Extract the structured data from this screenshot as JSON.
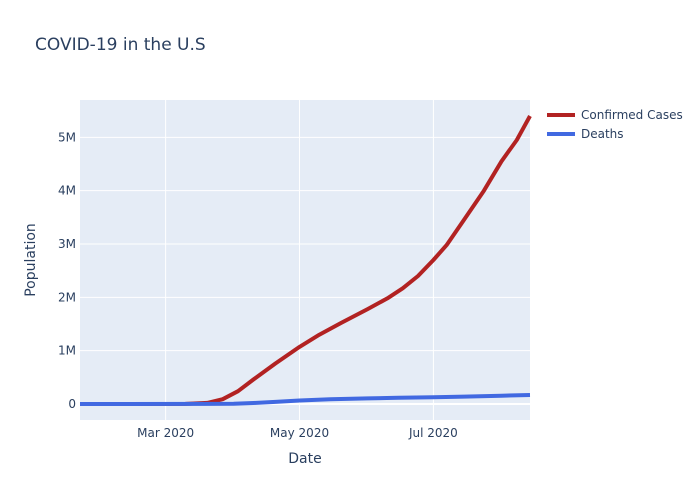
{
  "chart_data": {
    "type": "line",
    "title": "COVID-19 in the U.S",
    "xlabel": "Date",
    "ylabel": "Population",
    "x_type": "date",
    "xlim": [
      "2020-01-22",
      "2020-08-14"
    ],
    "ylim": [
      -300000,
      5700000
    ],
    "x_ticks": [
      {
        "date": "2020-03-01",
        "label": "Mar 2020"
      },
      {
        "date": "2020-05-01",
        "label": "May 2020"
      },
      {
        "date": "2020-07-01",
        "label": "Jul 2020"
      }
    ],
    "y_ticks": [
      {
        "value": 0,
        "label": "0"
      },
      {
        "value": 1000000,
        "label": "1M"
      },
      {
        "value": 2000000,
        "label": "2M"
      },
      {
        "value": 3000000,
        "label": "3M"
      },
      {
        "value": 4000000,
        "label": "4M"
      },
      {
        "value": 5000000,
        "label": "5M"
      }
    ],
    "grid": true,
    "legend_position": "top-right",
    "plot_background": "#e5ecf6",
    "series": [
      {
        "name": "Confirmed Cases",
        "color": "#b22222",
        "points": [
          {
            "x": "2020-01-22",
            "y": 0
          },
          {
            "x": "2020-02-15",
            "y": 15
          },
          {
            "x": "2020-03-10",
            "y": 1000
          },
          {
            "x": "2020-03-20",
            "y": 20000
          },
          {
            "x": "2020-03-27",
            "y": 90000
          },
          {
            "x": "2020-04-03",
            "y": 240000
          },
          {
            "x": "2020-04-10",
            "y": 460000
          },
          {
            "x": "2020-04-20",
            "y": 760000
          },
          {
            "x": "2020-05-01",
            "y": 1070000
          },
          {
            "x": "2020-05-10",
            "y": 1300000
          },
          {
            "x": "2020-05-20",
            "y": 1520000
          },
          {
            "x": "2020-06-01",
            "y": 1780000
          },
          {
            "x": "2020-06-10",
            "y": 1980000
          },
          {
            "x": "2020-06-17",
            "y": 2170000
          },
          {
            "x": "2020-06-24",
            "y": 2400000
          },
          {
            "x": "2020-07-01",
            "y": 2700000
          },
          {
            "x": "2020-07-07",
            "y": 2980000
          },
          {
            "x": "2020-07-14",
            "y": 3400000
          },
          {
            "x": "2020-07-24",
            "y": 4000000
          },
          {
            "x": "2020-08-01",
            "y": 4550000
          },
          {
            "x": "2020-08-08",
            "y": 4950000
          },
          {
            "x": "2020-08-14",
            "y": 5400000
          }
        ]
      },
      {
        "name": "Deaths",
        "color": "#4169e1",
        "points": [
          {
            "x": "2020-01-22",
            "y": 0
          },
          {
            "x": "2020-03-20",
            "y": 1000
          },
          {
            "x": "2020-04-01",
            "y": 6000
          },
          {
            "x": "2020-04-10",
            "y": 18000
          },
          {
            "x": "2020-04-20",
            "y": 40000
          },
          {
            "x": "2020-05-01",
            "y": 65000
          },
          {
            "x": "2020-05-15",
            "y": 88000
          },
          {
            "x": "2020-06-01",
            "y": 105000
          },
          {
            "x": "2020-06-15",
            "y": 117000
          },
          {
            "x": "2020-07-01",
            "y": 128000
          },
          {
            "x": "2020-07-15",
            "y": 138000
          },
          {
            "x": "2020-08-01",
            "y": 155000
          },
          {
            "x": "2020-08-14",
            "y": 168000
          }
        ]
      }
    ]
  }
}
